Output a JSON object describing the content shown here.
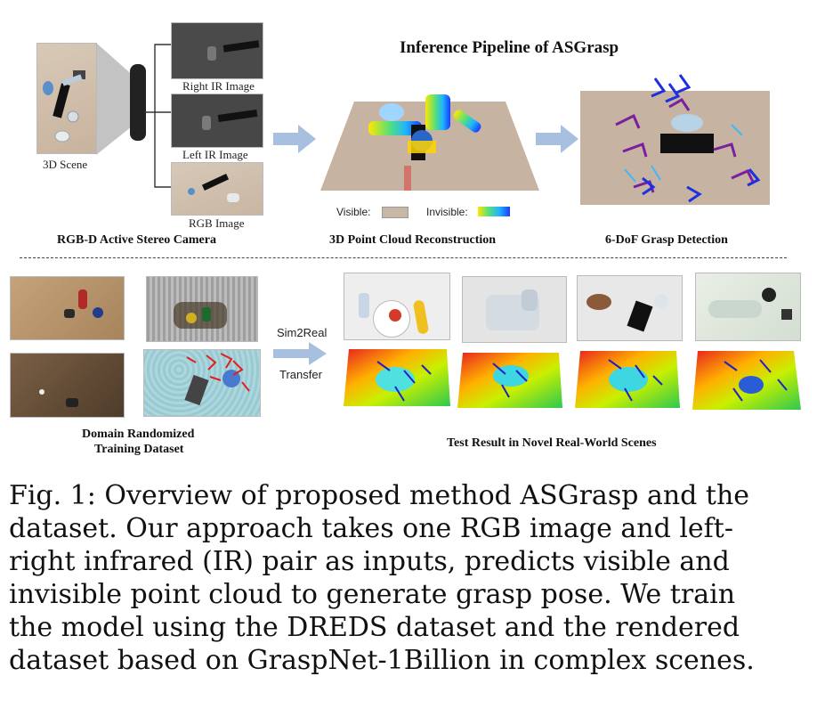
{
  "pipeline": {
    "title": "Inference Pipeline of ASGrasp",
    "scene_label": "3D Scene",
    "right_ir_label": "Right IR Image",
    "left_ir_label": "Left IR Image",
    "rgb_label": "RGB Image",
    "camera_title": "RGB-D Active Stereo Camera",
    "reconstruction_title": "3D Point Cloud Reconstruction",
    "grasp_title": "6-DoF Grasp Detection",
    "legend": {
      "visible_label": "Visible:",
      "invisible_label": "Invisible:"
    }
  },
  "training": {
    "dataset_title_line1": "Domain Randomized",
    "dataset_title_line2": "Training Dataset",
    "sim2real_label": "Sim2Real",
    "transfer_label": "Transfer",
    "test_title": "Test Result in Novel Real-World Scenes"
  },
  "caption": {
    "lines": [
      "Fig. 1: Overview of proposed method ASGrasp and the",
      "dataset. Our approach takes one RGB image and left-",
      "right infrared (IR) pair as inputs, predicts visible and",
      "invisible point cloud to generate grasp pose. We train",
      "the model using the DREDS dataset and the rendered",
      "dataset based on GraspNet-1Billion in complex scenes."
    ]
  },
  "colors": {
    "arrow": "#9db8dc",
    "table_top": "#c9b7a6",
    "grasp_purple": "#7a1fa0",
    "grasp_blue": "#1f2fe0"
  }
}
